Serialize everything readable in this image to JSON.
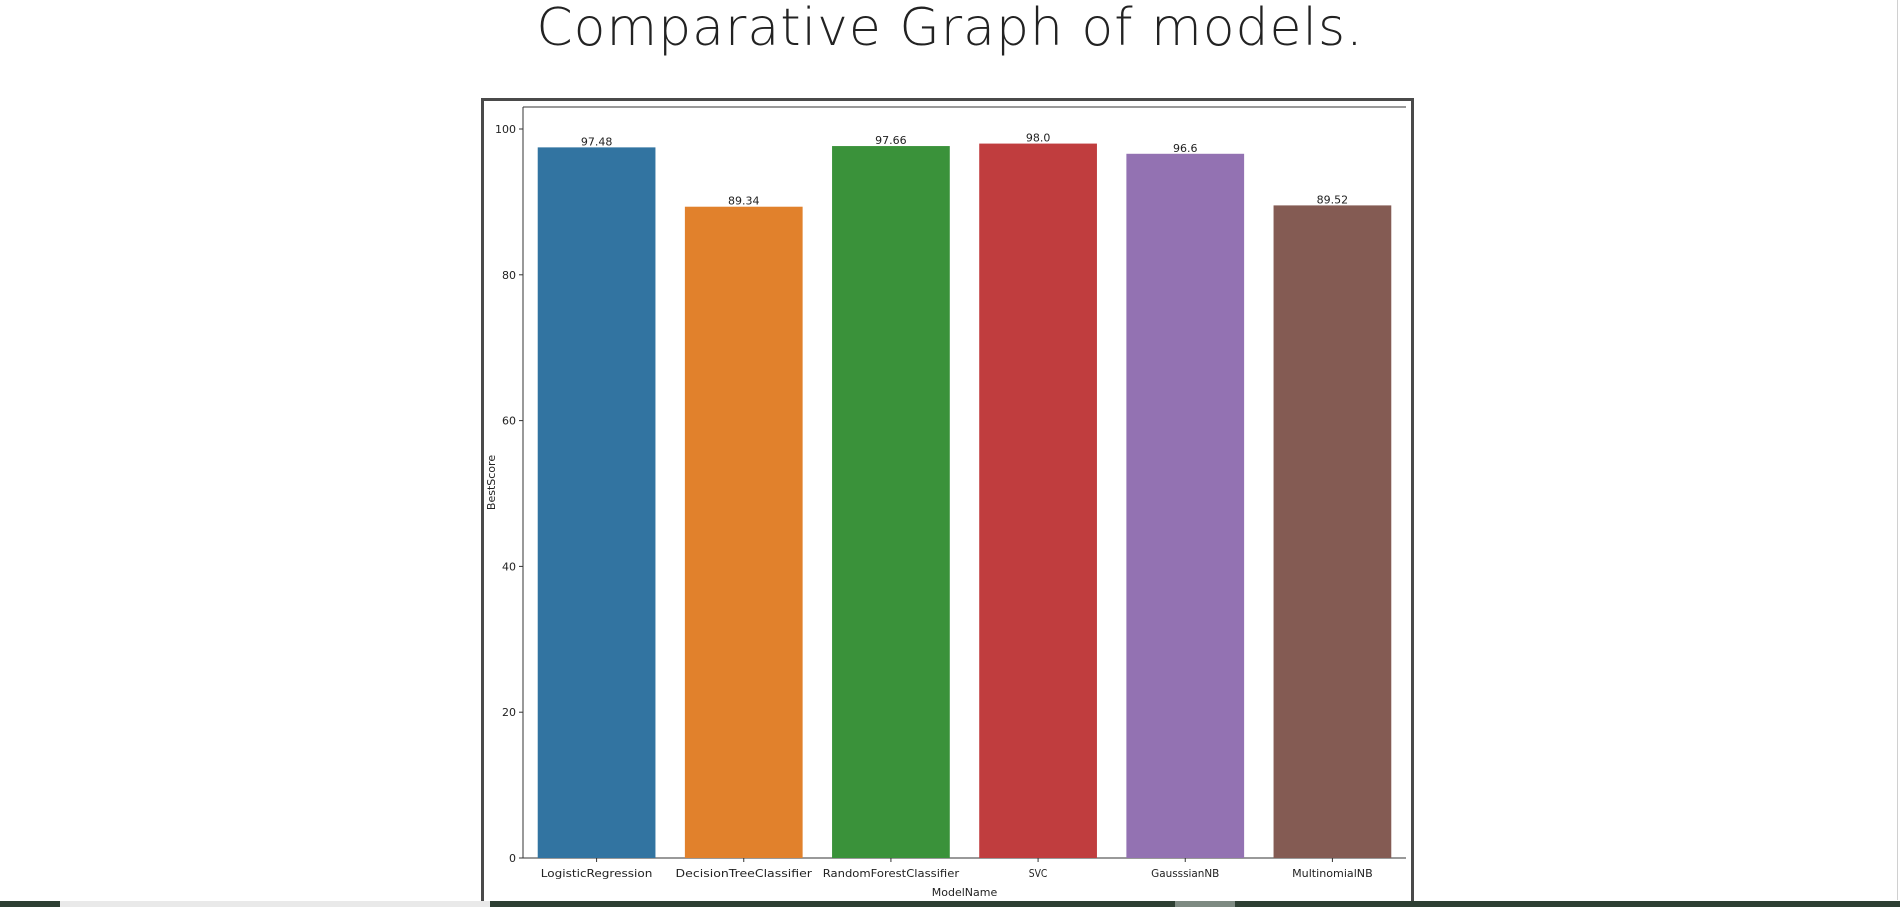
{
  "page": {
    "title": "Comparative Graph of models."
  },
  "chart_data": {
    "type": "bar",
    "title": "",
    "xlabel": "ModelName",
    "ylabel": "BestScore",
    "ylim": [
      0,
      100
    ],
    "yticks": [
      0,
      20,
      40,
      60,
      80,
      100
    ],
    "grid": false,
    "categories": [
      "LogisticRegression",
      "DecisionTreeClassifier",
      "RandomForestClassifier",
      "SVC",
      "GausssianNB",
      "MultinomialNB"
    ],
    "values": [
      97.48,
      89.34,
      97.66,
      98.0,
      96.6,
      89.52
    ],
    "value_labels": [
      "97.48",
      "89.34",
      "97.66",
      "98.0",
      "96.6",
      "89.52"
    ],
    "colors": [
      "#3274a1",
      "#e1812c",
      "#3a923a",
      "#c03d3e",
      "#9372b2",
      "#845b53"
    ]
  }
}
